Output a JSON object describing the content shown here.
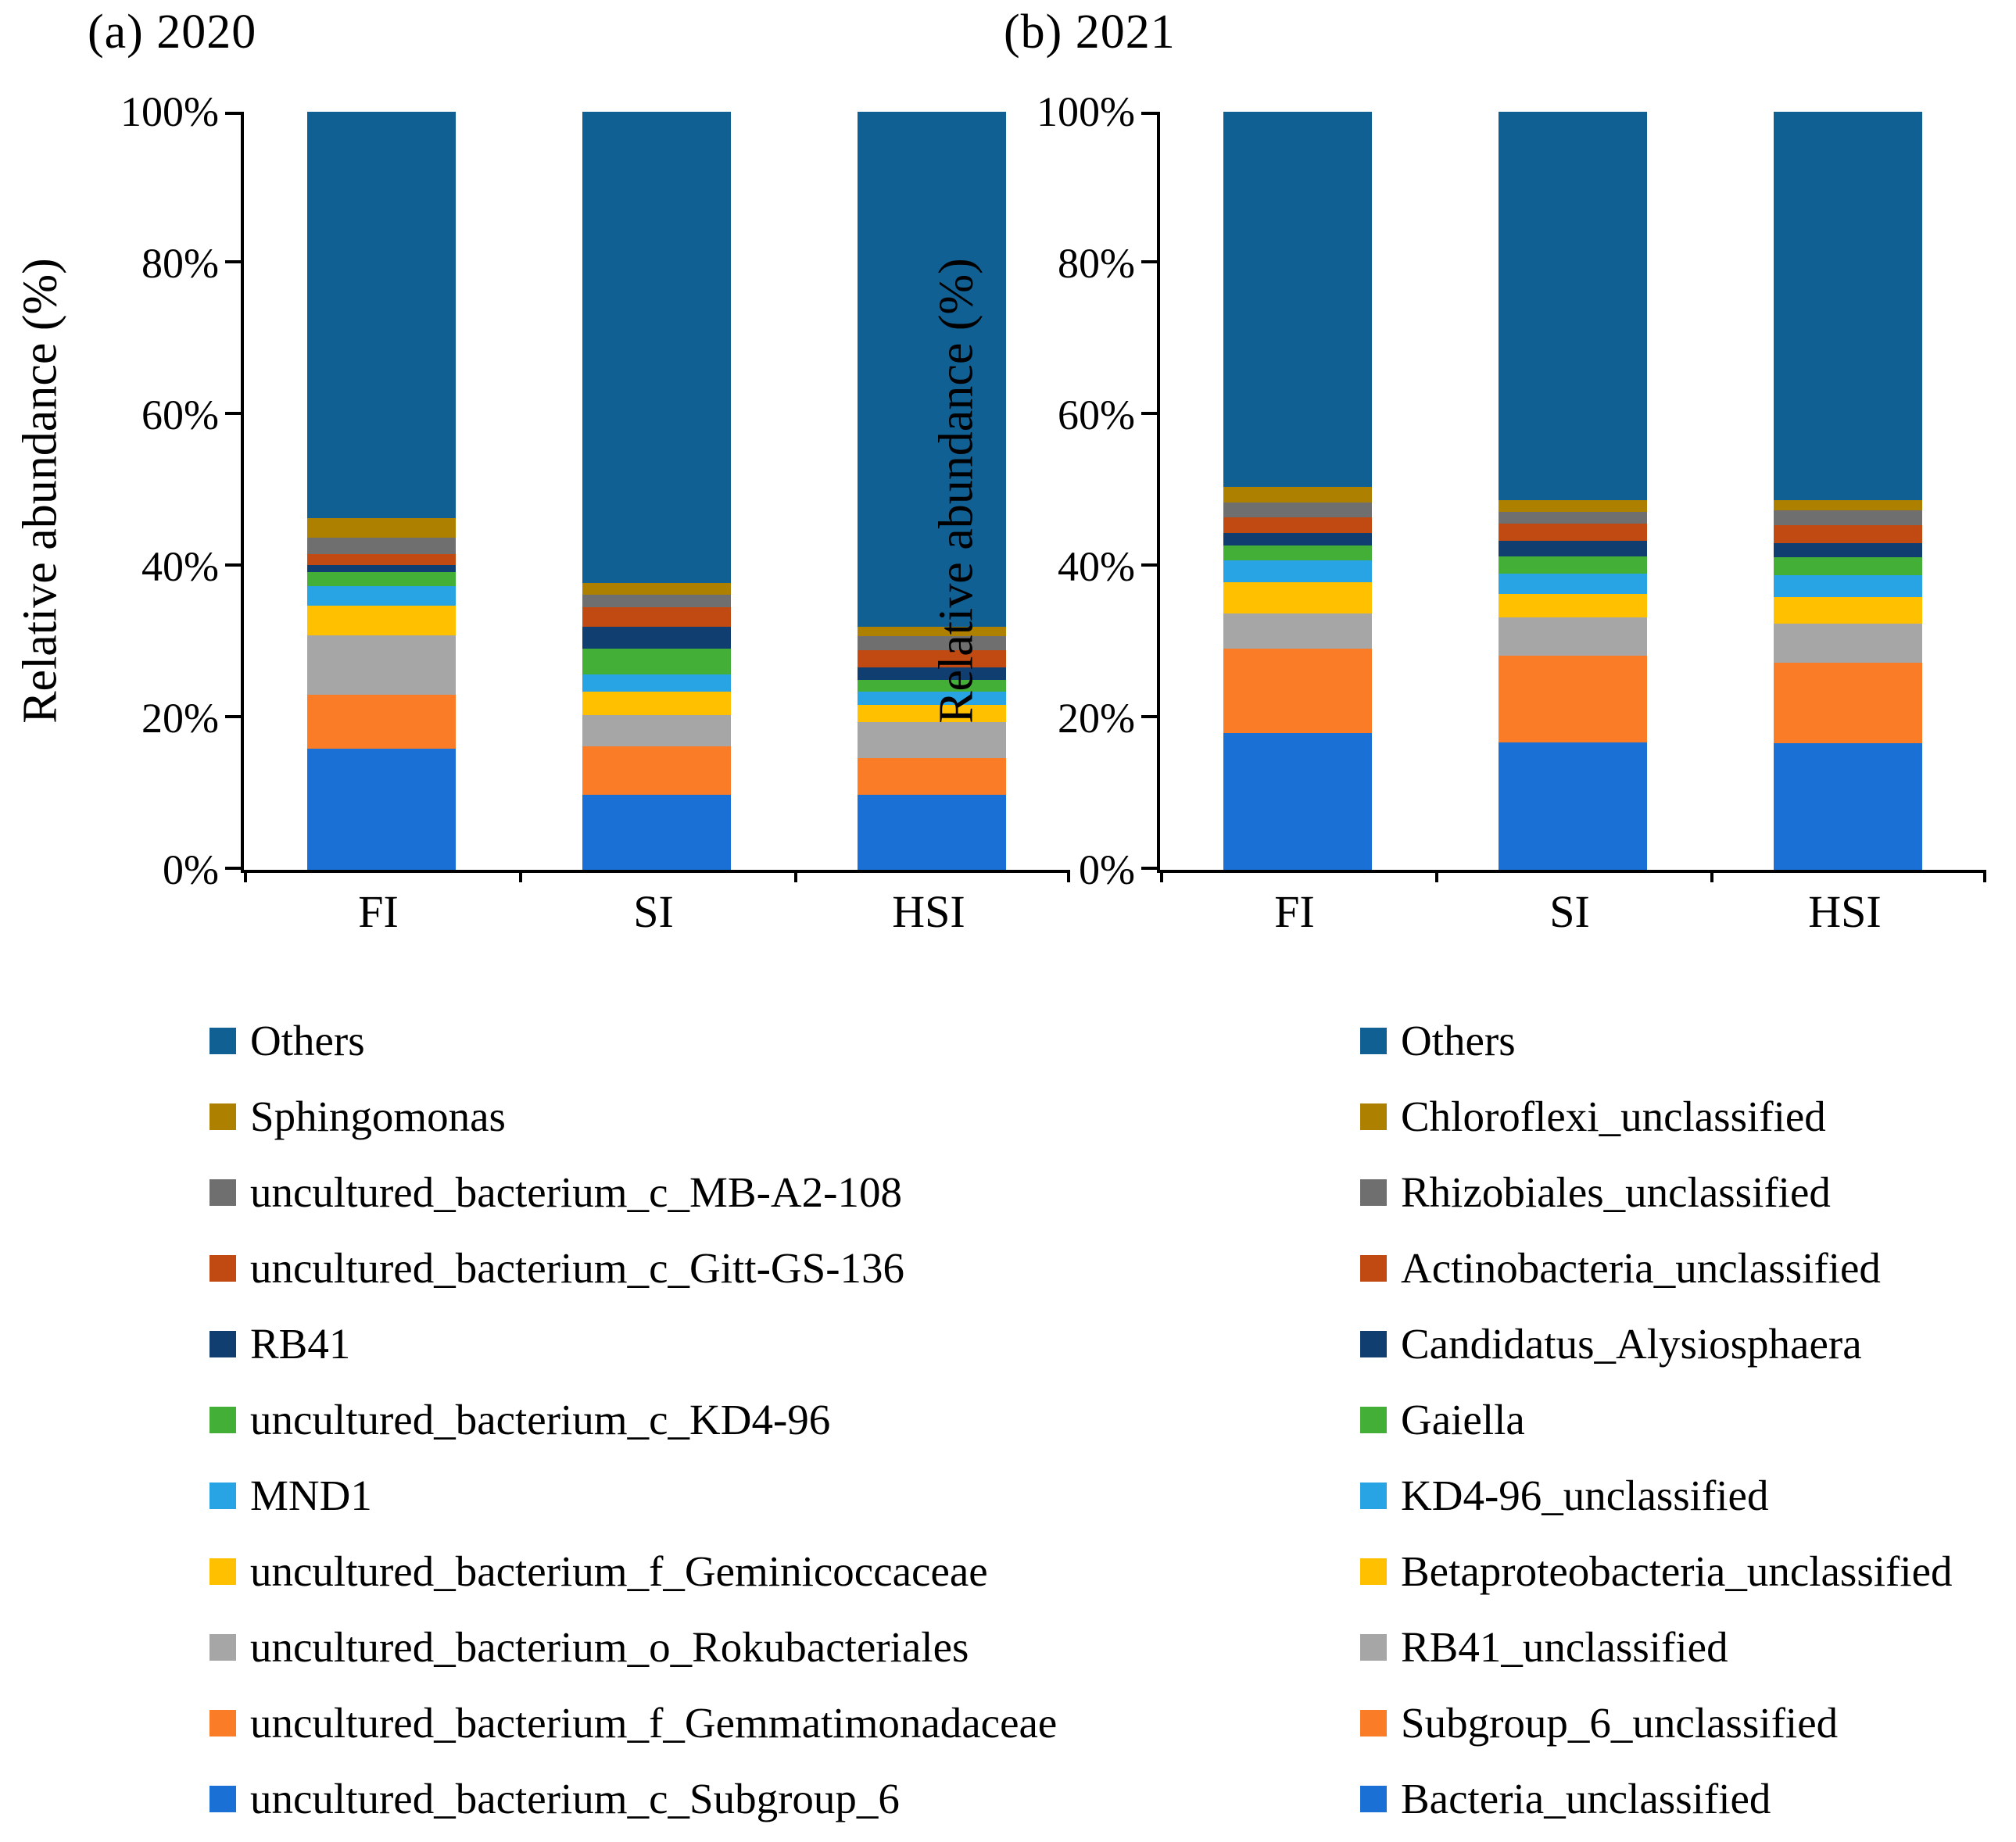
{
  "figure": {
    "background": "#ffffff",
    "axis_color": "#000000",
    "panel_count": 2
  },
  "chart_data": [
    {
      "type": "bar",
      "stacked": true,
      "title": "(a) 2020",
      "ylabel": "Relative abundance (%)",
      "xlabel": "",
      "ylim": [
        0,
        100
      ],
      "y_ticks": [
        "0%",
        "20%",
        "40%",
        "60%",
        "80%",
        "100%"
      ],
      "grid": false,
      "legend_position": "bottom-left",
      "legend_order": "top-to-bottom is reverse of stacking order",
      "categories": [
        "FI",
        "SI",
        "HSI"
      ],
      "series": [
        {
          "name": "uncultured_bacterium_c_Subgroup_6",
          "color": "#1B70D5",
          "values": [
            16.0,
            9.9,
            9.9
          ]
        },
        {
          "name": "uncultured_bacterium_f_Gemmatimonadaceae",
          "color": "#FB7C26",
          "values": [
            7.1,
            6.4,
            4.8
          ]
        },
        {
          "name": "uncultured_bacterium_o_Rokubacteriales",
          "color": "#A6A6A6",
          "values": [
            7.8,
            4.1,
            4.8
          ]
        },
        {
          "name": "uncultured_bacterium_f_Geminicoccaceae",
          "color": "#FFC000",
          "values": [
            3.9,
            3.1,
            2.3
          ]
        },
        {
          "name": "MND1",
          "color": "#28A4E4",
          "values": [
            2.6,
            2.3,
            1.7
          ]
        },
        {
          "name": "uncultured_bacterium_c_KD4-96",
          "color": "#44AF37",
          "values": [
            1.9,
            3.4,
            1.6
          ]
        },
        {
          "name": "RB41",
          "color": "#113E70",
          "values": [
            0.9,
            2.9,
            1.6
          ]
        },
        {
          "name": "uncultured_bacterium_c_Gitt-GS-136",
          "color": "#C04A12",
          "values": [
            1.5,
            2.5,
            2.3
          ]
        },
        {
          "name": "uncultured_bacterium_c_MB-A2-108",
          "color": "#6F6F6F",
          "values": [
            2.1,
            1.7,
            1.8
          ]
        },
        {
          "name": "Sphingomonas",
          "color": "#AD8000",
          "values": [
            2.6,
            1.5,
            1.3
          ]
        },
        {
          "name": "Others",
          "color": "#106094",
          "values": [
            53.6,
            62.2,
            67.9
          ]
        }
      ]
    },
    {
      "type": "bar",
      "stacked": true,
      "title": "(b) 2021",
      "ylabel": "Relative abundance (%)",
      "xlabel": "",
      "ylim": [
        0,
        100
      ],
      "y_ticks": [
        "0%",
        "20%",
        "40%",
        "60%",
        "80%",
        "100%"
      ],
      "grid": false,
      "legend_position": "bottom-left",
      "legend_order": "top-to-bottom is reverse of stacking order",
      "categories": [
        "FI",
        "SI",
        "HSI"
      ],
      "series": [
        {
          "name": "Bacteria_unclassified",
          "color": "#1B70D5",
          "values": [
            18.0,
            16.8,
            16.7
          ]
        },
        {
          "name": "Subgroup_6_unclassified",
          "color": "#FB7C26",
          "values": [
            11.2,
            11.4,
            10.6
          ]
        },
        {
          "name": "RB41_unclassified",
          "color": "#A6A6A6",
          "values": [
            4.6,
            5.1,
            5.2
          ]
        },
        {
          "name": "Betaproteobacteria_unclassified",
          "color": "#FFC000",
          "values": [
            4.1,
            3.1,
            3.5
          ]
        },
        {
          "name": "KD4-96_unclassified",
          "color": "#28A4E4",
          "values": [
            2.9,
            2.7,
            2.9
          ]
        },
        {
          "name": "Gaiella",
          "color": "#44AF37",
          "values": [
            2.0,
            2.2,
            2.3
          ]
        },
        {
          "name": "Candidatus_Alysiosphaera",
          "color": "#113E70",
          "values": [
            1.6,
            2.1,
            1.9
          ]
        },
        {
          "name": "Actinobacteria_unclassified",
          "color": "#C04A12",
          "values": [
            2.1,
            2.3,
            2.4
          ]
        },
        {
          "name": "Rhizobiales_unclassified",
          "color": "#6F6F6F",
          "values": [
            2.0,
            1.5,
            1.9
          ]
        },
        {
          "name": "Chloroflexi_unclassified",
          "color": "#AD8000",
          "values": [
            2.0,
            1.6,
            1.4
          ]
        },
        {
          "name": "Others",
          "color": "#106094",
          "values": [
            49.5,
            51.2,
            51.2
          ]
        }
      ]
    }
  ]
}
